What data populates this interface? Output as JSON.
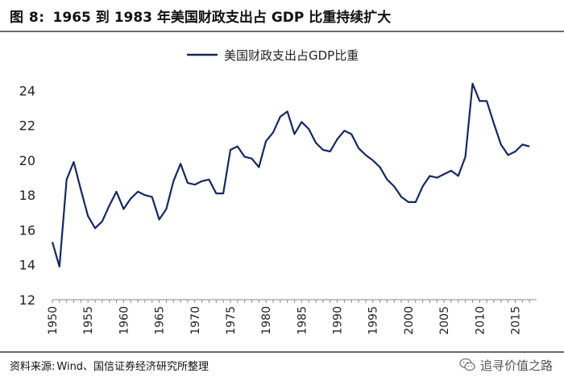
{
  "header": {
    "figure_label": "图 8:",
    "title": "1965 到 1983 年美国财政支出占 GDP 比重持续扩大"
  },
  "footer": {
    "source_label": "资料来源:",
    "source_text": "Wind、国信证券经济研究所整理",
    "watermark": "追寻价值之路"
  },
  "colors": {
    "line": "#17275e",
    "axis": "#888888"
  },
  "chart_data": {
    "type": "line",
    "title": "",
    "xlabel": "",
    "ylabel": "",
    "legend": {
      "position": "top-center",
      "entries": [
        "美国财政支出占GDP比重"
      ]
    },
    "xlim": [
      1950,
      2018
    ],
    "ylim": [
      12,
      25.5
    ],
    "yticks": [
      12,
      14,
      16,
      18,
      20,
      22,
      24
    ],
    "xticks": [
      1950,
      1955,
      1960,
      1965,
      1970,
      1975,
      1980,
      1985,
      1990,
      1995,
      2000,
      2005,
      2010,
      2015
    ],
    "series": [
      {
        "name": "美国财政支出占GDP比重",
        "x": [
          1950,
          1951,
          1952,
          1953,
          1954,
          1955,
          1956,
          1957,
          1958,
          1959,
          1960,
          1961,
          1962,
          1963,
          1964,
          1965,
          1966,
          1967,
          1968,
          1969,
          1970,
          1971,
          1972,
          1973,
          1974,
          1975,
          1976,
          1977,
          1978,
          1979,
          1980,
          1981,
          1982,
          1983,
          1984,
          1985,
          1986,
          1987,
          1988,
          1989,
          1990,
          1991,
          1992,
          1993,
          1994,
          1995,
          1996,
          1997,
          1998,
          1999,
          2000,
          2001,
          2002,
          2003,
          2004,
          2005,
          2006,
          2007,
          2008,
          2009,
          2010,
          2011,
          2012,
          2013,
          2014,
          2015,
          2016,
          2017
        ],
        "y": [
          15.3,
          13.9,
          18.9,
          19.9,
          18.3,
          16.8,
          16.1,
          16.5,
          17.4,
          18.2,
          17.2,
          17.8,
          18.2,
          18.0,
          17.9,
          16.6,
          17.2,
          18.8,
          19.8,
          18.7,
          18.6,
          18.8,
          18.9,
          18.1,
          18.1,
          20.6,
          20.8,
          20.2,
          20.1,
          19.6,
          21.1,
          21.6,
          22.5,
          22.8,
          21.5,
          22.2,
          21.8,
          21.0,
          20.6,
          20.5,
          21.2,
          21.7,
          21.5,
          20.7,
          20.3,
          20.0,
          19.6,
          18.9,
          18.5,
          17.9,
          17.6,
          17.6,
          18.5,
          19.1,
          19.0,
          19.2,
          19.4,
          19.1,
          20.2,
          24.4,
          23.4,
          23.4,
          22.1,
          20.9,
          20.3,
          20.5,
          20.9,
          20.8
        ]
      }
    ]
  }
}
